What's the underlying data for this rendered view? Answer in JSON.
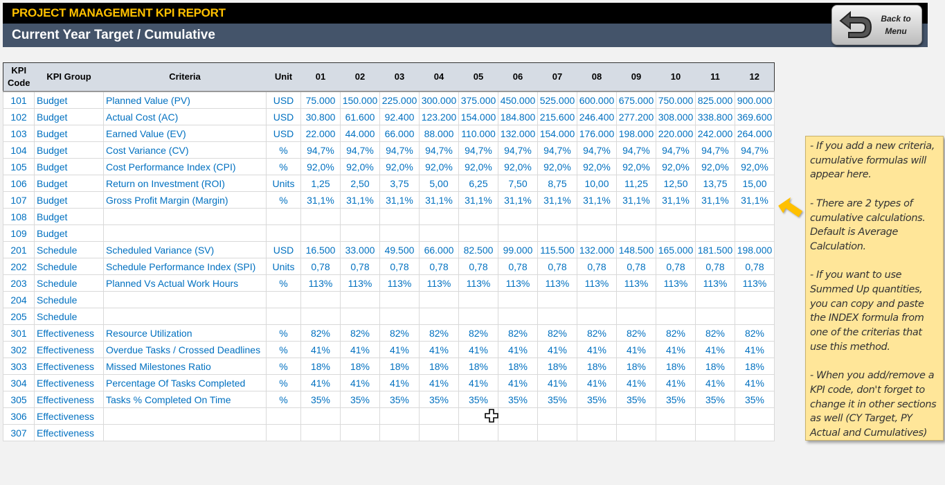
{
  "header": {
    "title": "PROJECT MANAGEMENT KPI REPORT",
    "subtitle": "Current Year Target / Cumulative",
    "back_button": "Back to\nMenu"
  },
  "colors": {
    "title": "#ffc000",
    "subtitle_bar": "#44546a",
    "cell_text": "#0070c0",
    "note": "#ffe699",
    "arrow": "#ffc000"
  },
  "table": {
    "headers": [
      "KPI Code",
      "KPI Group",
      "Criteria",
      "Unit",
      "01",
      "02",
      "03",
      "04",
      "05",
      "06",
      "07",
      "08",
      "09",
      "10",
      "11",
      "12"
    ],
    "rows": [
      [
        "101",
        "Budget",
        "Planned Value (PV)",
        "USD",
        "75.000",
        "150.000",
        "225.000",
        "300.000",
        "375.000",
        "450.000",
        "525.000",
        "600.000",
        "675.000",
        "750.000",
        "825.000",
        "900.000"
      ],
      [
        "102",
        "Budget",
        "Actual Cost (AC)",
        "USD",
        "30.800",
        "61.600",
        "92.400",
        "123.200",
        "154.000",
        "184.800",
        "215.600",
        "246.400",
        "277.200",
        "308.000",
        "338.800",
        "369.600"
      ],
      [
        "103",
        "Budget",
        "Earned Value (EV)",
        "USD",
        "22.000",
        "44.000",
        "66.000",
        "88.000",
        "110.000",
        "132.000",
        "154.000",
        "176.000",
        "198.000",
        "220.000",
        "242.000",
        "264.000"
      ],
      [
        "104",
        "Budget",
        "Cost Variance (CV)",
        "%",
        "94,7%",
        "94,7%",
        "94,7%",
        "94,7%",
        "94,7%",
        "94,7%",
        "94,7%",
        "94,7%",
        "94,7%",
        "94,7%",
        "94,7%",
        "94,7%"
      ],
      [
        "105",
        "Budget",
        "Cost Performance Index (CPI)",
        "%",
        "92,0%",
        "92,0%",
        "92,0%",
        "92,0%",
        "92,0%",
        "92,0%",
        "92,0%",
        "92,0%",
        "92,0%",
        "92,0%",
        "92,0%",
        "92,0%"
      ],
      [
        "106",
        "Budget",
        "Return on Investment (ROI)",
        "Units",
        "1,25",
        "2,50",
        "3,75",
        "5,00",
        "6,25",
        "7,50",
        "8,75",
        "10,00",
        "11,25",
        "12,50",
        "13,75",
        "15,00"
      ],
      [
        "107",
        "Budget",
        "Gross Profit Margin (Margin)",
        "%",
        "31,1%",
        "31,1%",
        "31,1%",
        "31,1%",
        "31,1%",
        "31,1%",
        "31,1%",
        "31,1%",
        "31,1%",
        "31,1%",
        "31,1%",
        "31,1%"
      ],
      [
        "108",
        "Budget",
        "",
        "",
        "",
        "",
        "",
        "",
        "",
        "",
        "",
        "",
        "",
        "",
        "",
        ""
      ],
      [
        "109",
        "Budget",
        "",
        "",
        "",
        "",
        "",
        "",
        "",
        "",
        "",
        "",
        "",
        "",
        "",
        ""
      ],
      [
        "201",
        "Schedule",
        "Scheduled Variance (SV)",
        "USD",
        "16.500",
        "33.000",
        "49.500",
        "66.000",
        "82.500",
        "99.000",
        "115.500",
        "132.000",
        "148.500",
        "165.000",
        "181.500",
        "198.000"
      ],
      [
        "202",
        "Schedule",
        "Schedule Performance Index (SPI)",
        "Units",
        "0,78",
        "0,78",
        "0,78",
        "0,78",
        "0,78",
        "0,78",
        "0,78",
        "0,78",
        "0,78",
        "0,78",
        "0,78",
        "0,78"
      ],
      [
        "203",
        "Schedule",
        "Planned Vs Actual Work Hours",
        "%",
        "113%",
        "113%",
        "113%",
        "113%",
        "113%",
        "113%",
        "113%",
        "113%",
        "113%",
        "113%",
        "113%",
        "113%"
      ],
      [
        "204",
        "Schedule",
        "",
        "",
        "",
        "",
        "",
        "",
        "",
        "",
        "",
        "",
        "",
        "",
        "",
        ""
      ],
      [
        "205",
        "Schedule",
        "",
        "",
        "",
        "",
        "",
        "",
        "",
        "",
        "",
        "",
        "",
        "",
        "",
        ""
      ],
      [
        "301",
        "Effectiveness",
        "Resource Utilization",
        "%",
        "82%",
        "82%",
        "82%",
        "82%",
        "82%",
        "82%",
        "82%",
        "82%",
        "82%",
        "82%",
        "82%",
        "82%"
      ],
      [
        "302",
        "Effectiveness",
        "Overdue Tasks / Crossed Deadlines",
        "%",
        "41%",
        "41%",
        "41%",
        "41%",
        "41%",
        "41%",
        "41%",
        "41%",
        "41%",
        "41%",
        "41%",
        "41%"
      ],
      [
        "303",
        "Effectiveness",
        "Missed Milestones Ratio",
        "%",
        "18%",
        "18%",
        "18%",
        "18%",
        "18%",
        "18%",
        "18%",
        "18%",
        "18%",
        "18%",
        "18%",
        "18%"
      ],
      [
        "304",
        "Effectiveness",
        "Percentage Of Tasks Completed",
        "%",
        "41%",
        "41%",
        "41%",
        "41%",
        "41%",
        "41%",
        "41%",
        "41%",
        "41%",
        "41%",
        "41%",
        "41%"
      ],
      [
        "305",
        "Effectiveness",
        "Tasks % Completed On Time",
        "%",
        "35%",
        "35%",
        "35%",
        "35%",
        "35%",
        "35%",
        "35%",
        "35%",
        "35%",
        "35%",
        "35%",
        "35%"
      ],
      [
        "306",
        "Effectiveness",
        "",
        "",
        "",
        "",
        "",
        "",
        "",
        "",
        "",
        "",
        "",
        "",
        "",
        ""
      ],
      [
        "307",
        "Effectiveness",
        "",
        "",
        "",
        "",
        "",
        "",
        "",
        "",
        "",
        "",
        "",
        "",
        "",
        ""
      ]
    ]
  },
  "note": {
    "text": "- If you add a new criteria, cumulative formulas will appear here.\n\n- There are 2 types of cumulative calculations. Default is Average Calculation.\n\n- If you want to use Summed Up quantities, you can copy and paste the INDEX formula from one of the criterias that use this method.\n\n- When you add/remove a KPI code, don't forget to change it in other sections as well (CY Target, PY Actual and Cumulatives)"
  }
}
